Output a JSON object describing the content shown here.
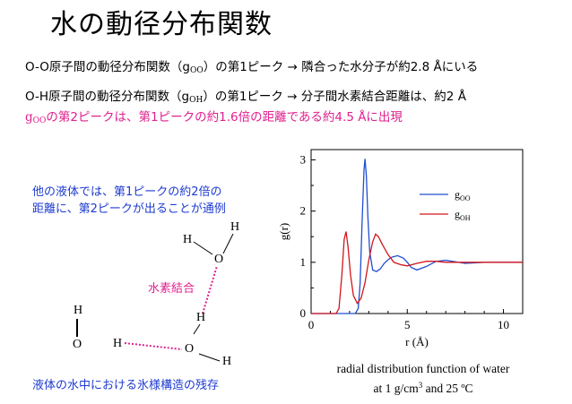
{
  "title": "水の動径分布関数",
  "lines": {
    "l1": {
      "a": "O-O原子間の動径分布関数（g",
      "sub": "OO",
      "b": "）の第1ピーク → 隣合った水分子が約2.8 Åにいる"
    },
    "l2": {
      "a": "O-H原子間の動径分布関数（g",
      "sub": "OH",
      "b": "）の第1ピーク → 分子間水素結合距離は、約2 Å"
    },
    "l3": {
      "a": "g",
      "sub": "OO",
      "b": "の第2ピークは、第1ピークの約1.6倍の距離である約4.5 Åに出現"
    }
  },
  "note_top": [
    "他の液体では、第1ピークの約2倍の",
    "距離に、第2ピークが出ることが通例"
  ],
  "hbond_label": "水素結合",
  "note_bottom": "液体の水中における氷様構造の残存",
  "atoms": {
    "O": "O",
    "H": "H"
  },
  "caption": {
    "line1": "radial distribution function of water",
    "pre": "at 1 g/cm",
    "sup": "3",
    "post": " and 25 ºC"
  },
  "colors": {
    "goo": "#1f4fd1",
    "goh": "#d2161c",
    "pink": "#e0208e",
    "blue_text": "#1d3bd1"
  },
  "chart_data": {
    "type": "line",
    "xlabel": "r (Å)",
    "ylabel": "g(r)",
    "xlim": [
      0,
      11
    ],
    "ylim": [
      0,
      3.2
    ],
    "xticks": [
      0,
      5,
      10
    ],
    "yticks": [
      0,
      1,
      2,
      3
    ],
    "grid": false,
    "legend_position": "top-right",
    "series": [
      {
        "name": "g",
        "name_sub": "OO",
        "color": "#1f4fd1",
        "x": [
          0,
          2.3,
          2.45,
          2.55,
          2.65,
          2.75,
          2.8,
          2.87,
          2.95,
          3.05,
          3.2,
          3.4,
          3.6,
          3.8,
          4.0,
          4.2,
          4.5,
          4.8,
          5.0,
          5.2,
          5.5,
          6.0,
          6.5,
          7.0,
          8.0,
          9.0,
          10.0,
          11.0
        ],
        "y": [
          0,
          0,
          0.1,
          0.6,
          1.8,
          2.8,
          3.02,
          2.7,
          1.9,
          1.2,
          0.85,
          0.82,
          0.87,
          0.98,
          1.05,
          1.1,
          1.13,
          1.08,
          1.0,
          0.9,
          0.85,
          0.92,
          1.02,
          1.04,
          0.98,
          1.0,
          1.0,
          1.0
        ]
      },
      {
        "name": "g",
        "name_sub": "OH",
        "color": "#d2161c",
        "x": [
          0,
          1.3,
          1.45,
          1.6,
          1.72,
          1.82,
          1.92,
          2.05,
          2.2,
          2.4,
          2.6,
          2.8,
          3.0,
          3.2,
          3.35,
          3.5,
          3.7,
          4.0,
          4.3,
          4.7,
          5.0,
          5.5,
          6.0,
          6.5,
          7.0,
          8.0,
          9.0,
          10.0,
          11.0
        ],
        "y": [
          0,
          0,
          0.1,
          0.75,
          1.45,
          1.6,
          1.3,
          0.75,
          0.35,
          0.2,
          0.3,
          0.6,
          1.05,
          1.4,
          1.55,
          1.5,
          1.35,
          1.15,
          1.0,
          0.95,
          0.93,
          0.98,
          1.02,
          1.02,
          1.0,
          1.0,
          1.0,
          1.0,
          1.0
        ]
      }
    ]
  }
}
